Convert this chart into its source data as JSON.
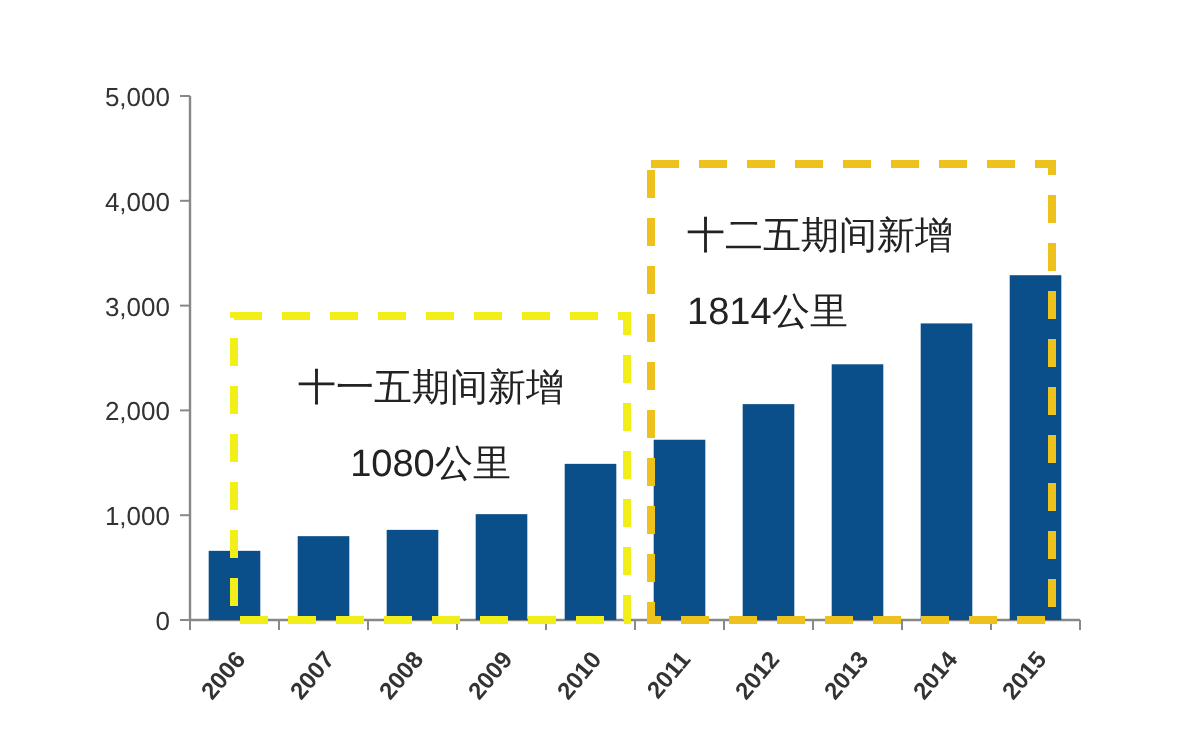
{
  "chart_data": {
    "type": "bar",
    "categories": [
      "2006",
      "2007",
      "2008",
      "2009",
      "2010",
      "2011",
      "2012",
      "2013",
      "2014",
      "2015"
    ],
    "values": [
      660,
      800,
      860,
      1010,
      1490,
      1720,
      2060,
      2440,
      2830,
      3290
    ],
    "color": "#0b4f8a",
    "ylim": [
      0,
      5000
    ],
    "yticks": [
      {
        "value": 0,
        "label": "0"
      },
      {
        "value": 1000,
        "label": "1,000"
      },
      {
        "value": 2000,
        "label": "2,000"
      },
      {
        "value": 3000,
        "label": "3,000"
      },
      {
        "value": 4000,
        "label": "4,000"
      },
      {
        "value": 5000,
        "label": "5,000"
      }
    ],
    "annotations": [
      "十一五期间新增",
      "1080公里",
      "十二五期间新增",
      "1814公里"
    ]
  }
}
